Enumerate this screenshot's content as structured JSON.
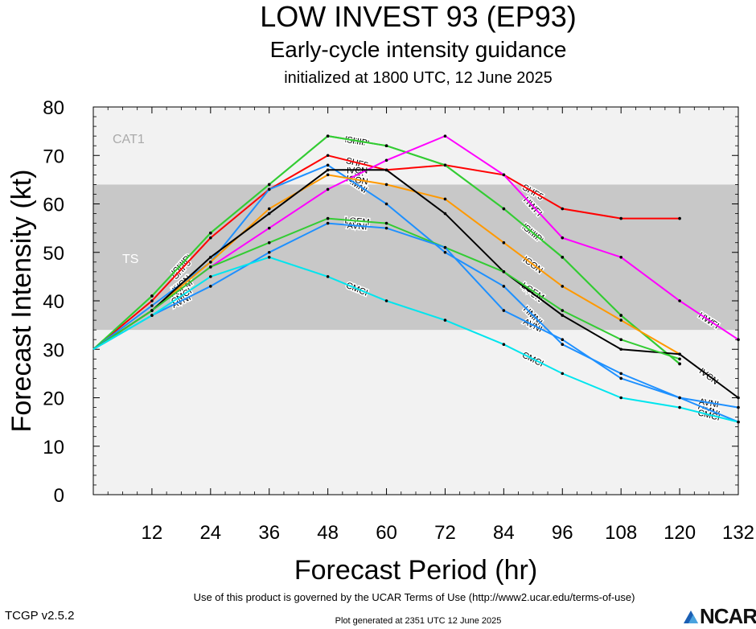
{
  "header": {
    "title": "LOW INVEST 93 (EP93)",
    "subtitle": "Early-cycle intensity guidance",
    "init": "initialized at 1800 UTC, 12 June 2025"
  },
  "footer": {
    "terms": "Use of this product is governed by the UCAR Terms of Use (http://www2.ucar.edu/terms-of-use)",
    "version": "TCGP v2.5.2",
    "generated": "Plot generated at 2351 UTC   12 June 2025",
    "logo_text": "NCAR"
  },
  "chart_data": {
    "type": "line",
    "xlabel": "Forecast Period (hr)",
    "ylabel": "Forecast Intensity (kt)",
    "xlim": [
      0,
      132
    ],
    "ylim": [
      0,
      80
    ],
    "xticks": [
      12,
      24,
      36,
      48,
      60,
      72,
      84,
      96,
      108,
      120,
      132
    ],
    "yticks": [
      0,
      10,
      20,
      30,
      40,
      50,
      60,
      70,
      80
    ],
    "bands": [
      {
        "name": "TS",
        "from": 34,
        "to": 64,
        "color": "#c8c8c8"
      },
      {
        "name": "CAT1",
        "from": 64,
        "to": 80,
        "color": "#f2f2f2"
      }
    ],
    "series": [
      {
        "name": "SHF5",
        "color": "#ff0000",
        "x": [
          0,
          12,
          24,
          36,
          48,
          60,
          72,
          84,
          96,
          108,
          120
        ],
        "y": [
          30,
          40,
          53,
          63,
          70,
          67,
          68,
          66,
          59,
          57,
          57
        ]
      },
      {
        "name": "DSHP",
        "color": "#33cc33",
        "x": [
          0,
          12,
          24,
          36,
          48,
          60,
          72,
          84,
          96,
          108,
          120
        ],
        "y": [
          30,
          41,
          54,
          64,
          74,
          72,
          68,
          59,
          49,
          37,
          27
        ]
      },
      {
        "name": "SHIP",
        "color": "#33cc33",
        "x": [
          0,
          12,
          24,
          36,
          48,
          60,
          72,
          84,
          96,
          108,
          120
        ],
        "y": [
          30,
          41,
          54,
          64,
          74,
          72,
          68,
          59,
          49,
          37,
          27
        ]
      },
      {
        "name": "HWFI",
        "color": "#ff00ff",
        "x": [
          0,
          12,
          24,
          36,
          48,
          60,
          72,
          84,
          96,
          108,
          120,
          132
        ],
        "y": [
          30,
          38,
          47,
          55,
          63,
          69,
          74,
          66,
          53,
          49,
          40,
          32
        ]
      },
      {
        "name": "HMNI",
        "color": "#1e90ff",
        "x": [
          0,
          12,
          24,
          36,
          48,
          60,
          72,
          84,
          96,
          108,
          120,
          132
        ],
        "y": [
          30,
          39,
          48,
          63,
          68,
          60,
          50,
          43,
          31,
          25,
          20,
          15
        ]
      },
      {
        "name": "ICON",
        "color": "#ff9900",
        "x": [
          0,
          12,
          24,
          36,
          48,
          60,
          72,
          84,
          96,
          108,
          120
        ],
        "y": [
          30,
          38,
          48,
          59,
          66,
          64,
          61,
          52,
          43,
          36,
          29
        ]
      },
      {
        "name": "IVCN",
        "color": "#000000",
        "x": [
          0,
          12,
          24,
          36,
          48,
          60,
          72,
          84,
          96,
          108,
          120,
          132
        ],
        "y": [
          30,
          38,
          49,
          58,
          67,
          67,
          58,
          46,
          37,
          30,
          29,
          20
        ]
      },
      {
        "name": "LGEM",
        "color": "#33cc33",
        "x": [
          0,
          12,
          24,
          36,
          48,
          60,
          72,
          84,
          96,
          108,
          120
        ],
        "y": [
          30,
          38,
          47,
          52,
          57,
          56,
          51,
          46,
          38,
          32,
          28
        ]
      },
      {
        "name": "AVNI",
        "color": "#1e90ff",
        "x": [
          0,
          12,
          24,
          36,
          48,
          60,
          72,
          84,
          96,
          108,
          120,
          132
        ],
        "y": [
          30,
          37,
          43,
          50,
          56,
          55,
          51,
          38,
          32,
          24,
          20,
          18
        ]
      },
      {
        "name": "CMCI",
        "color": "#00e5ee",
        "x": [
          0,
          12,
          24,
          36,
          48,
          60,
          72,
          84,
          96,
          108,
          120,
          132
        ],
        "y": [
          30,
          37,
          45,
          49,
          45,
          40,
          36,
          31,
          25,
          20,
          18,
          15
        ]
      }
    ]
  }
}
